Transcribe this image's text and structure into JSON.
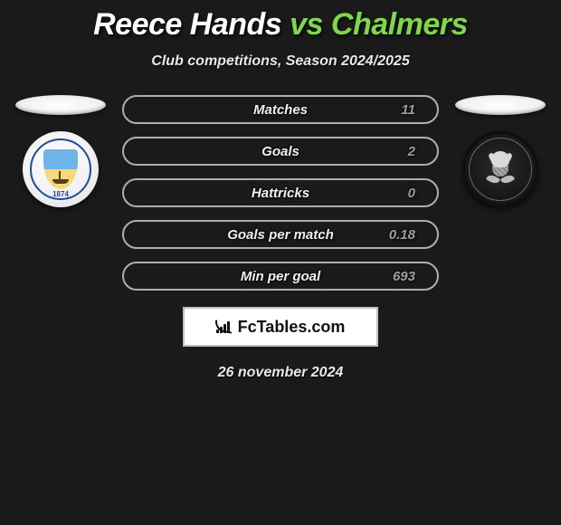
{
  "title": {
    "player1": "Reece Hands",
    "vs": "vs",
    "player2": "Chalmers"
  },
  "subtitle": "Club competitions, Season 2024/2025",
  "club_left": {
    "name": "Greenock Morton",
    "year": "1874"
  },
  "club_right": {
    "name": "Partick Thistle"
  },
  "stats": {
    "row_border_color": "#d0d0d0",
    "label_color": "#f0f0f0",
    "value_color": "#9e9e9e",
    "rows": [
      {
        "label": "Matches",
        "left": "",
        "right": "11"
      },
      {
        "label": "Goals",
        "left": "",
        "right": "2"
      },
      {
        "label": "Hattricks",
        "left": "",
        "right": "0"
      },
      {
        "label": "Goals per match",
        "left": "",
        "right": "0.18"
      },
      {
        "label": "Min per goal",
        "left": "",
        "right": "693"
      }
    ]
  },
  "branding": "FcTables.com",
  "date": "26 november 2024",
  "colors": {
    "background": "#1a1a1a",
    "accent_green": "#7fd84a",
    "pill_bg": "#f2f2f2"
  }
}
